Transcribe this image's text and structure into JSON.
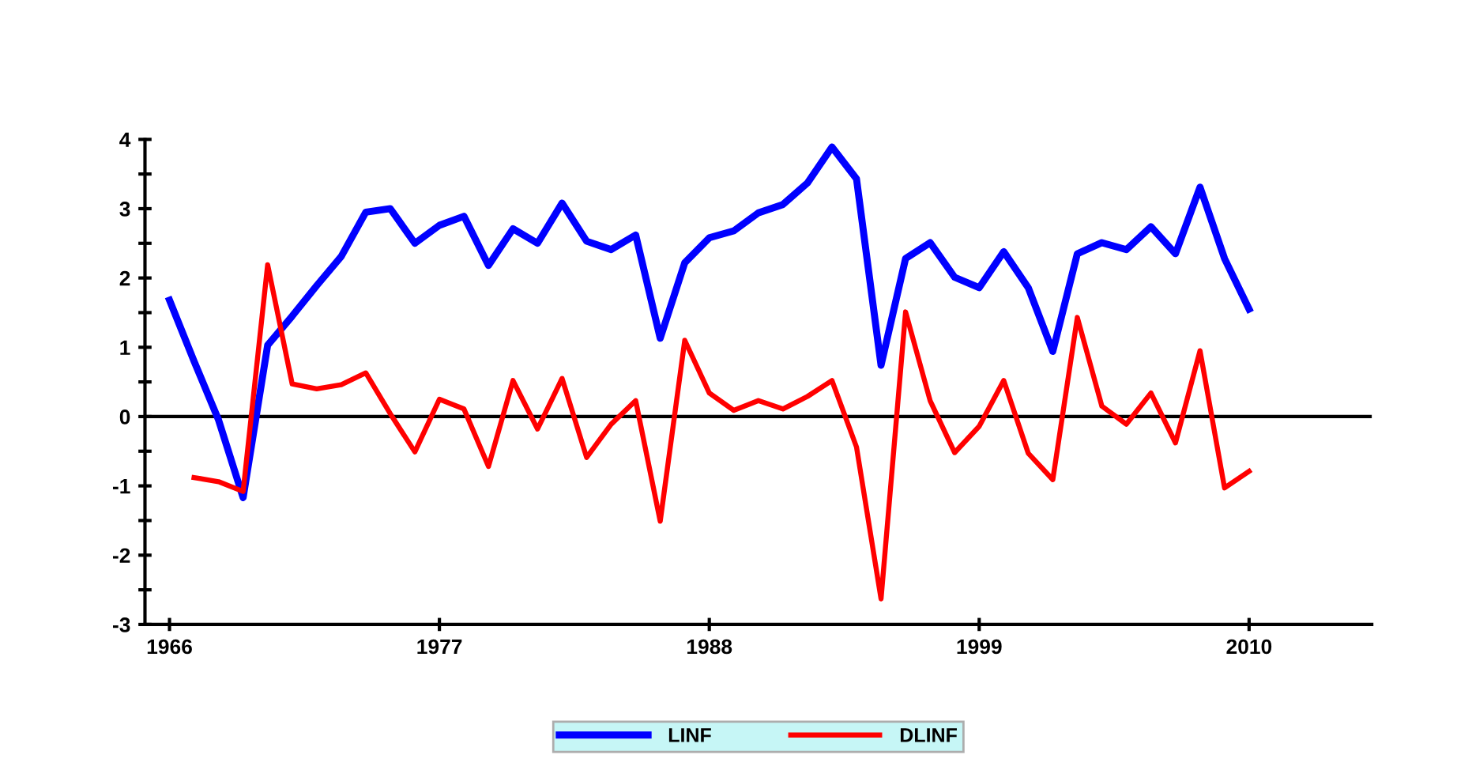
{
  "chart_data": {
    "type": "line",
    "x": [
      1966,
      1967,
      1968,
      1969,
      1970,
      1971,
      1972,
      1973,
      1974,
      1975,
      1976,
      1977,
      1978,
      1979,
      1980,
      1981,
      1982,
      1983,
      1984,
      1985,
      1986,
      1987,
      1988,
      1989,
      1990,
      1991,
      1992,
      1993,
      1994,
      1995,
      1996,
      1997,
      1998,
      1999,
      2000,
      2001,
      2002,
      2003,
      2004,
      2005,
      2006,
      2007,
      2008,
      2009,
      2010
    ],
    "series": [
      {
        "name": "LINF",
        "color": "#0000ff",
        "values": [
          1.68,
          0.8,
          -0.05,
          -1.17,
          1.03,
          1.45,
          1.89,
          2.31,
          2.95,
          3.0,
          2.5,
          2.76,
          2.89,
          2.18,
          2.71,
          2.5,
          3.08,
          2.53,
          2.41,
          2.62,
          1.13,
          2.22,
          2.58,
          2.68,
          2.94,
          3.06,
          3.37,
          3.89,
          3.43,
          0.74,
          2.28,
          2.51,
          2.01,
          1.86,
          2.38,
          1.86,
          0.94,
          2.35,
          2.51,
          2.41,
          2.74,
          2.35,
          3.31,
          2.28,
          1.55
        ]
      },
      {
        "name": "DLINF",
        "color": "#ff0000",
        "values": [
          null,
          -0.88,
          -0.94,
          -1.08,
          2.19,
          0.47,
          0.4,
          0.46,
          0.63,
          0.04,
          -0.51,
          0.25,
          0.11,
          -0.72,
          0.52,
          -0.18,
          0.55,
          -0.59,
          -0.11,
          0.23,
          -1.51,
          1.1,
          0.34,
          0.09,
          0.23,
          0.11,
          0.29,
          0.52,
          -0.44,
          -2.63,
          1.51,
          0.23,
          -0.52,
          -0.14,
          0.52,
          -0.53,
          -0.91,
          1.43,
          0.15,
          -0.11,
          0.34,
          -0.38,
          0.95,
          -1.03,
          -0.79
        ]
      }
    ],
    "xlim": [
      1965,
      2015
    ],
    "xticks": [
      1966,
      1977,
      1988,
      1999,
      2010
    ],
    "ylim": [
      -3,
      4
    ],
    "yticks": [
      -3,
      -2,
      -1,
      0,
      1,
      2,
      3,
      4
    ],
    "ref_lines": [
      {
        "axis": "y",
        "value": 0,
        "color": "#000000"
      }
    ],
    "legend": "bottom",
    "grid": false
  }
}
